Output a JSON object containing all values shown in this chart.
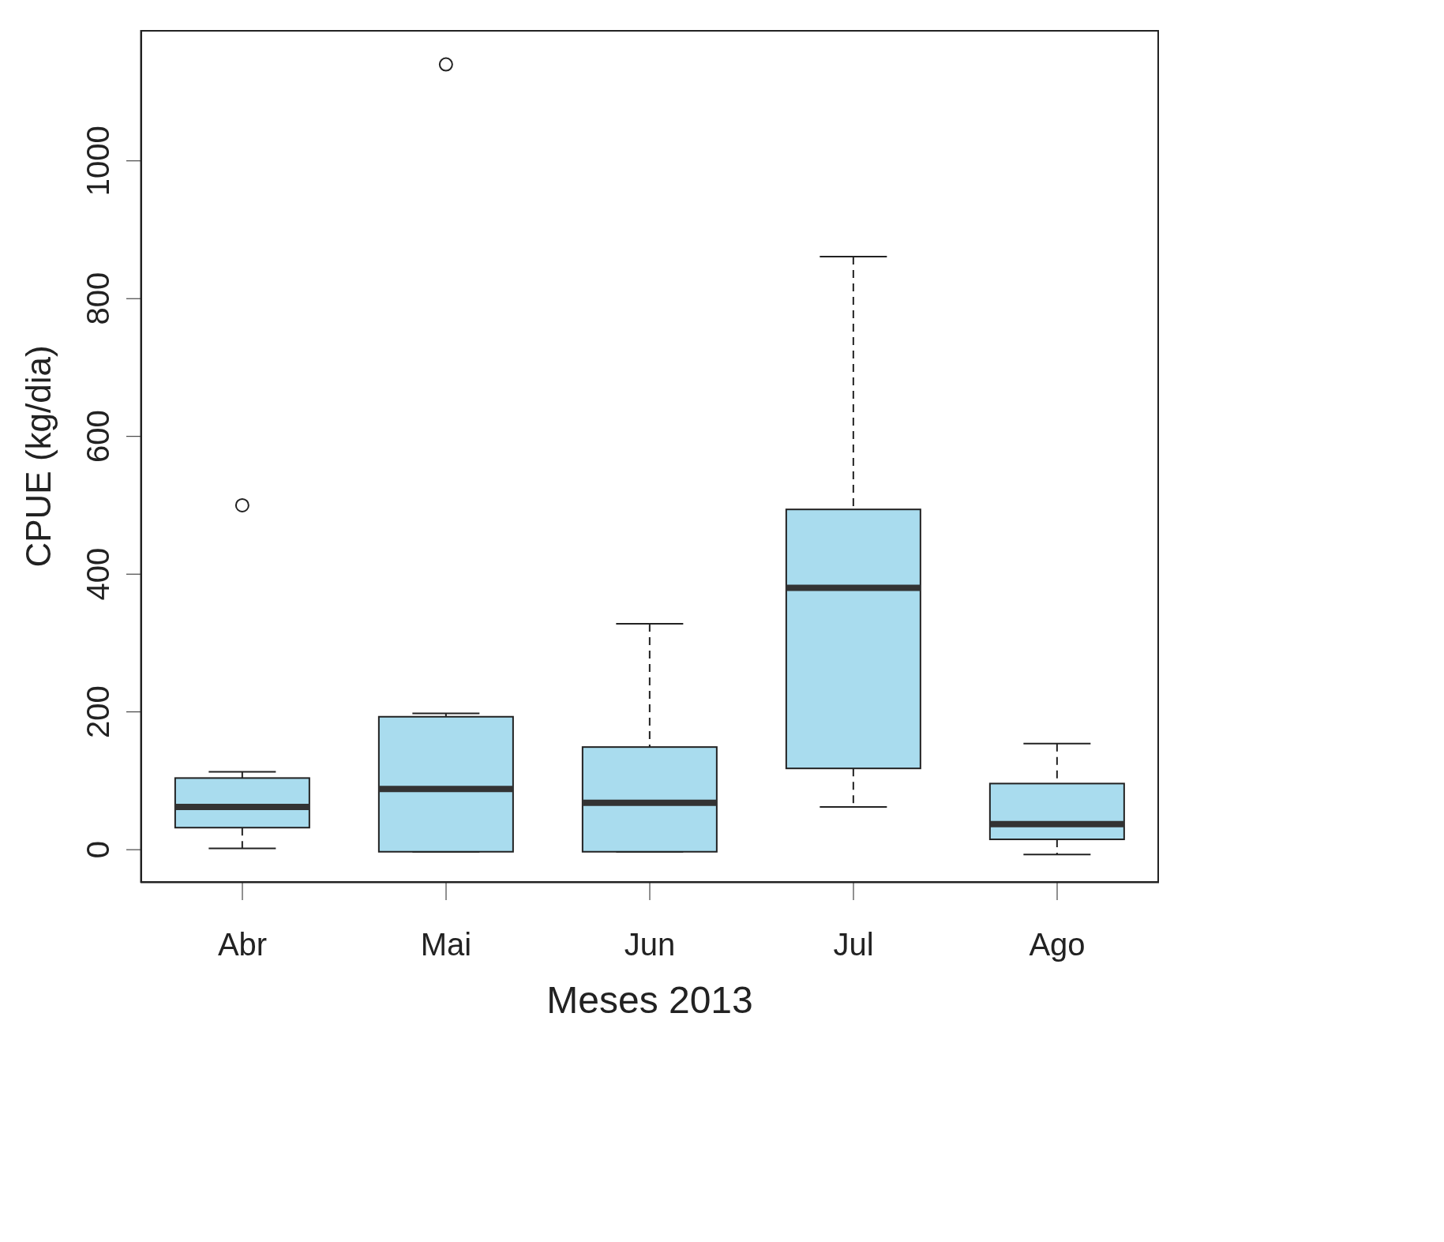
{
  "chart_data": {
    "type": "box",
    "xlabel": "Meses 2013",
    "ylabel": "CPUE (kg/dia)",
    "categories": [
      "Abr",
      "Mai",
      "Jun",
      "Jul",
      "Ago"
    ],
    "color": "#a9dcee",
    "boxes": [
      {
        "low": 2,
        "q1": 32,
        "median": 62,
        "q3": 104,
        "high": 113,
        "outliers": [
          500
        ]
      },
      {
        "low": -3,
        "q1": -3,
        "median": 88,
        "q3": 193,
        "high": 198,
        "outliers": [
          1140
        ]
      },
      {
        "low": -3,
        "q1": -3,
        "median": 68,
        "q3": 149,
        "high": 328
      },
      {
        "low": 62,
        "q1": 118,
        "median": 380,
        "q3": 494,
        "high": 861
      },
      {
        "low": -7,
        "q1": 15,
        "median": 37,
        "q3": 96,
        "high": 154
      }
    ],
    "ylim": [
      -48,
      1190
    ],
    "yticks": [
      0,
      200,
      400,
      600,
      800,
      1000
    ]
  }
}
